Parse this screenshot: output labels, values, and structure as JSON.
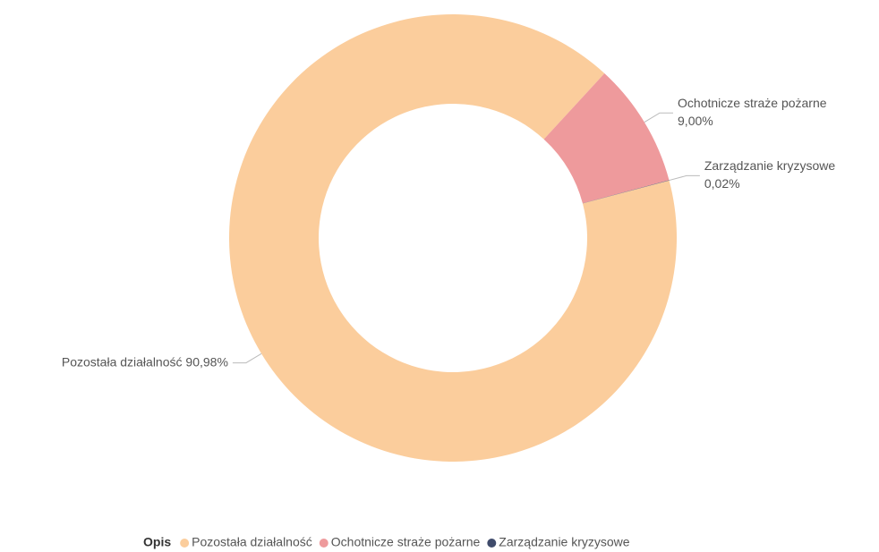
{
  "chart_data": {
    "type": "donut",
    "categories": [
      "Pozostała działalność",
      "Ochotnicze straże pożarne",
      "Zarządzanie kryzysowe"
    ],
    "values": [
      90.98,
      9.0,
      0.02
    ],
    "value_labels": [
      "90,98%",
      "9,00%",
      "0,02%"
    ],
    "colors": [
      "#fbcd9c",
      "#ee9a9c",
      "#3f4b6b"
    ],
    "legend_title": "Opis",
    "legend_position": "bottom"
  }
}
